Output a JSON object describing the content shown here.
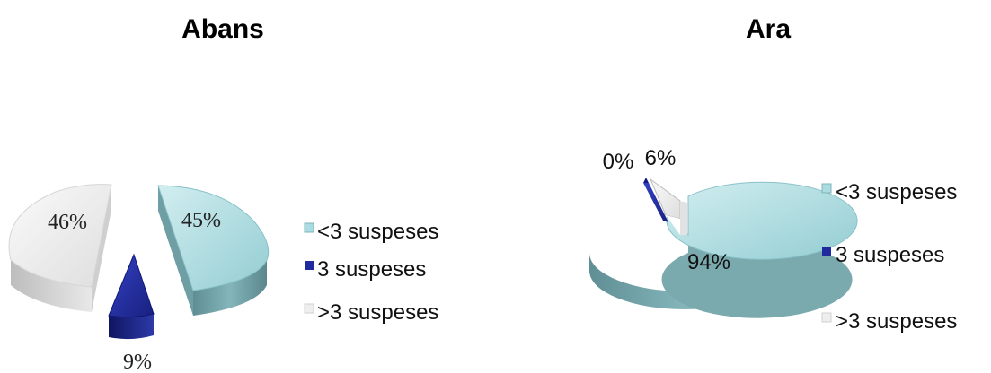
{
  "chart_data": [
    {
      "type": "pie",
      "title": "Abans",
      "categories": [
        "<3 suspeses",
        "3 suspeses",
        ">3 suspeses"
      ],
      "values": [
        45,
        9,
        46
      ],
      "labels": [
        "45%",
        "9%",
        "46%"
      ],
      "colors": [
        "#a9dbe0",
        "#1f2a9e",
        "#eeeeee"
      ],
      "legend_position": "right",
      "style": "3d-exploded"
    },
    {
      "type": "pie",
      "title": "Ara",
      "categories": [
        "<3 suspeses",
        "3 suspeses",
        ">3 suspeses"
      ],
      "values": [
        94,
        0,
        6
      ],
      "labels": [
        "94%",
        "0%",
        "6%"
      ],
      "colors": [
        "#a9dbe0",
        "#1f2a9e",
        "#eeeeee"
      ],
      "legend_position": "right",
      "style": "3d-exploded"
    }
  ]
}
